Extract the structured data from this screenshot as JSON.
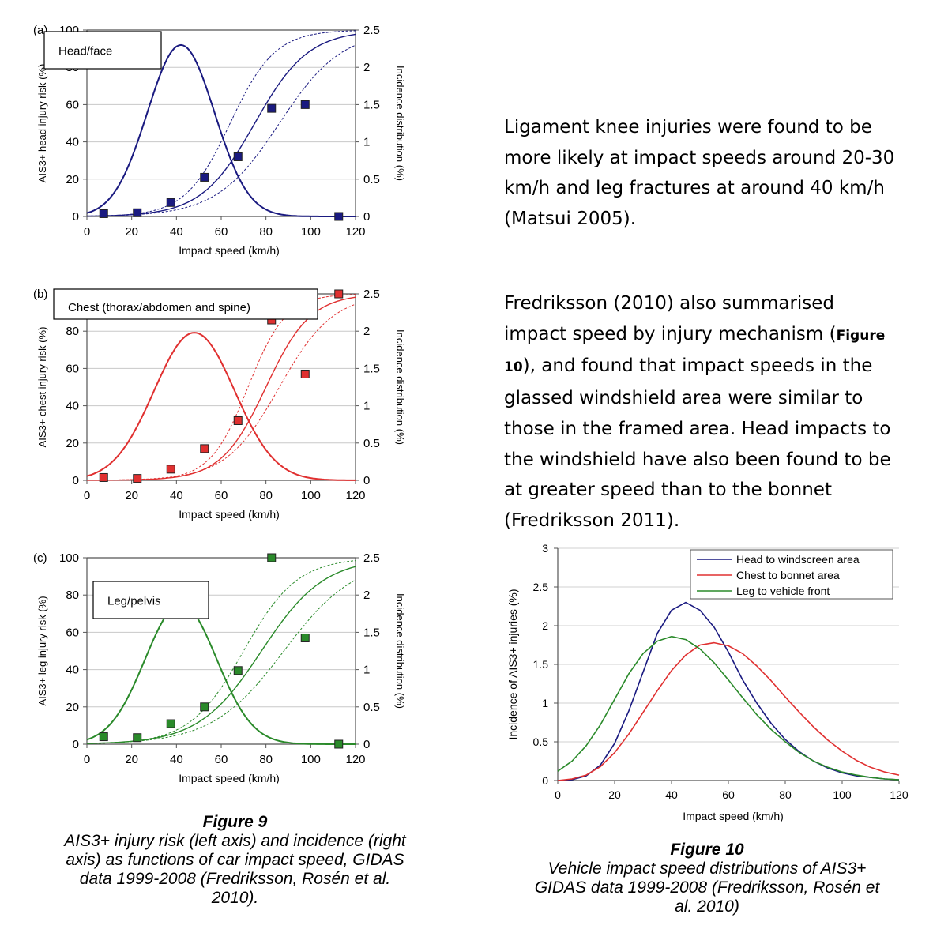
{
  "paragraph1": {
    "lines": [
      "Ligament knee injuries were found to be",
      "more likely at impact speeds around 20-30",
      "km/h and leg fractures at around 40 km/h",
      "(Matsui 2005)."
    ]
  },
  "paragraph2": {
    "line1": "Fredriksson (2010) also summarised",
    "line2_pre": "impact speed by injury mechanism (",
    "line2_fig": "Figure",
    "line3_fig": "10",
    "line3_post": "), and found that impact speeds in the",
    "lines_rest": [
      "glassed windshield area were similar to",
      "those in the framed area. Head impacts to",
      "the windshield have also been found to be",
      "at greater speed than to the bonnet",
      "(Fredriksson 2011)."
    ]
  },
  "figure9_caption": {
    "label": "Figure 9",
    "lines": [
      "AIS3+ injury risk (left axis) and incidence (right",
      "axis) as functions of car impact speed, GIDAS",
      "data 1999-2008  (Fredriksson, Rosén et al.",
      "2010)."
    ]
  },
  "figure10_caption": {
    "label": "Figure 10",
    "lines": [
      "Vehicle impact speed distributions of AIS3+",
      "GIDAS data 1999-2008 (Fredriksson, Rosén et",
      "al. 2010)"
    ]
  },
  "chart_data": [
    {
      "type": "line",
      "panel_label": "(a)",
      "title": "Head/face",
      "color": "#1a1a80",
      "xlabel": "Impact speed (km/h)",
      "ylabel": "AIS3+ head injury risk (%)",
      "ylabel_right": "Incidence distribution (%)",
      "xlim": [
        0,
        120
      ],
      "ylim": [
        0,
        100
      ],
      "ylim_right": [
        0,
        2.5
      ],
      "x_ticks": [
        "0",
        "20",
        "40",
        "60",
        "80",
        "100",
        "120"
      ],
      "y_ticks": [
        "0",
        "20",
        "40",
        "60",
        "80",
        "100"
      ],
      "y_ticks_right": [
        "0",
        "0.5",
        "1",
        "1.5",
        "2",
        "2.5"
      ],
      "incidence": {
        "peak_x": 42,
        "peak_y": 2.3,
        "sigma": 15
      },
      "risk_curve": {
        "mid": 75,
        "scale": 12
      },
      "upper_band": {
        "mid": 64,
        "scale": 10
      },
      "lower_band": {
        "mid": 86,
        "scale": 14
      },
      "markers": {
        "x": [
          7.5,
          22.5,
          37.5,
          52.5,
          67.5,
          82.5,
          97.5,
          112.5
        ],
        "y": [
          1.5,
          2,
          7.5,
          21,
          32,
          58,
          60,
          0
        ]
      },
      "grid": true
    },
    {
      "type": "line",
      "panel_label": "(b)",
      "title": "Chest (thorax/abdomen and spine)",
      "color": "#e03030",
      "xlabel": "Impact speed (km/h)",
      "ylabel": "AIS3+ chest injury risk (%)",
      "ylabel_right": "Incidence distribution (%)",
      "xlim": [
        0,
        120
      ],
      "ylim": [
        0,
        100
      ],
      "ylim_right": [
        0,
        2.5
      ],
      "x_ticks": [
        "0",
        "20",
        "40",
        "60",
        "80",
        "100",
        "120"
      ],
      "y_ticks": [
        "0",
        "20",
        "40",
        "60",
        "80"
      ],
      "y_ticks_right": [
        "0",
        "0.5",
        "1",
        "1.5",
        "2",
        "2.5"
      ],
      "incidence": {
        "peak_x": 48,
        "peak_y": 1.98,
        "sigma": 18
      },
      "risk_curve": {
        "mid": 80,
        "scale": 10
      },
      "upper_band": {
        "mid": 72,
        "scale": 8.5
      },
      "lower_band": {
        "mid": 86,
        "scale": 12
      },
      "markers": {
        "x": [
          7.5,
          22.5,
          37.5,
          52.5,
          67.5,
          82.5,
          97.5,
          112.5
        ],
        "y": [
          1.5,
          1,
          6,
          17,
          32,
          86,
          57,
          100
        ]
      },
      "grid": true
    },
    {
      "type": "line",
      "panel_label": "(c)",
      "title": "Leg/pelvis",
      "color": "#2a8a2a",
      "xlabel": "Impact speed (km/h)",
      "ylabel": "AIS3+ leg injury risk (%)",
      "ylabel_right": "Incidence distribution (%)",
      "xlim": [
        0,
        120
      ],
      "ylim": [
        0,
        100
      ],
      "ylim_right": [
        0,
        2.5
      ],
      "x_ticks": [
        "0",
        "20",
        "40",
        "60",
        "80",
        "100",
        "120"
      ],
      "y_ticks": [
        "0",
        "20",
        "40",
        "60",
        "80",
        "100"
      ],
      "y_ticks_right": [
        "0",
        "0.5",
        "1",
        "1.5",
        "2",
        "2.5"
      ],
      "incidence": {
        "peak_x": 42,
        "peak_y": 1.88,
        "sigma": 16
      },
      "risk_curve": {
        "mid": 78,
        "scale": 14
      },
      "upper_band": {
        "mid": 70,
        "scale": 12
      },
      "lower_band": {
        "mid": 88,
        "scale": 16
      },
      "markers": {
        "x": [
          7.5,
          22.5,
          37.5,
          52.5,
          67.5,
          82.5,
          97.5,
          112.5
        ],
        "y": [
          4,
          3.5,
          11,
          20,
          39.5,
          100,
          57,
          0
        ]
      },
      "grid": true
    },
    {
      "type": "line",
      "xlabel": "Impact speed (km/h)",
      "ylabel": "Incidence of AIS3+ injuries (%)",
      "xlim": [
        0,
        120
      ],
      "ylim": [
        0,
        3
      ],
      "x_ticks": [
        "0",
        "20",
        "40",
        "60",
        "80",
        "100",
        "120"
      ],
      "y_ticks": [
        "0",
        "0.5",
        "1",
        "1.5",
        "2",
        "2.5",
        "3"
      ],
      "legend_position": "top-right",
      "series": [
        {
          "name": "Head to windscreen area",
          "color": "#1a1a80",
          "x": [
            0,
            5,
            10,
            15,
            20,
            25,
            30,
            35,
            40,
            45,
            50,
            55,
            60,
            65,
            70,
            75,
            80,
            85,
            90,
            95,
            100,
            105,
            110,
            115,
            120
          ],
          "y": [
            0.0,
            0.01,
            0.06,
            0.2,
            0.48,
            0.9,
            1.4,
            1.9,
            2.2,
            2.3,
            2.2,
            1.98,
            1.66,
            1.3,
            1.0,
            0.74,
            0.53,
            0.37,
            0.25,
            0.16,
            0.1,
            0.06,
            0.04,
            0.02,
            0.01
          ]
        },
        {
          "name": "Chest to bonnet area",
          "color": "#e03030",
          "x": [
            0,
            5,
            10,
            15,
            20,
            25,
            30,
            35,
            40,
            45,
            50,
            55,
            60,
            65,
            70,
            75,
            80,
            85,
            90,
            95,
            100,
            105,
            110,
            115,
            120
          ],
          "y": [
            0.0,
            0.02,
            0.07,
            0.18,
            0.36,
            0.6,
            0.88,
            1.16,
            1.42,
            1.62,
            1.75,
            1.78,
            1.74,
            1.64,
            1.48,
            1.29,
            1.08,
            0.88,
            0.69,
            0.52,
            0.38,
            0.26,
            0.17,
            0.11,
            0.07
          ]
        },
        {
          "name": "Leg to vehicle front",
          "color": "#2a8a2a",
          "x": [
            0,
            5,
            10,
            15,
            20,
            25,
            30,
            35,
            40,
            45,
            50,
            55,
            60,
            65,
            70,
            75,
            80,
            85,
            90,
            95,
            100,
            105,
            110,
            115,
            120
          ],
          "y": [
            0.12,
            0.25,
            0.45,
            0.72,
            1.05,
            1.38,
            1.64,
            1.8,
            1.86,
            1.82,
            1.7,
            1.52,
            1.3,
            1.07,
            0.85,
            0.66,
            0.5,
            0.36,
            0.25,
            0.17,
            0.11,
            0.07,
            0.04,
            0.02,
            0.01
          ]
        }
      ],
      "grid": true
    }
  ]
}
